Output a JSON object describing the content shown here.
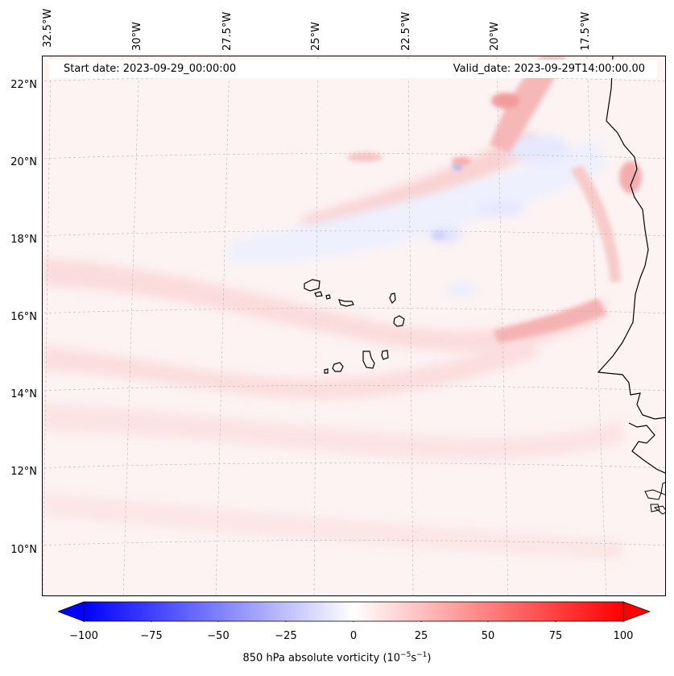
{
  "header": {
    "start_date": "Start date: 2023-09-29_00:00:00",
    "valid_date": "Valid_date: 2023-09-29T14:00:00.00"
  },
  "map": {
    "lon_labels": [
      "32.5°W",
      "30°W",
      "27.5°W",
      "25°W",
      "22.5°W",
      "20°W",
      "17.5°W"
    ],
    "lat_labels": [
      "22°N",
      "20°N",
      "18°N",
      "16°N",
      "14°N",
      "12°N",
      "10°N"
    ],
    "features": [
      "Cabo Verde islands",
      "West African coastline"
    ]
  },
  "colorbar": {
    "ticks": [
      "−100",
      "−75",
      "−50",
      "−25",
      "0",
      "25",
      "50",
      "75",
      "100"
    ],
    "label_prefix": "850 hPa absolute vorticity (10",
    "label_exp1": "−5",
    "label_mid": "s",
    "label_exp2": "−1",
    "label_suffix": ")",
    "colormap": "bwr",
    "range": [
      -100,
      100
    ],
    "low_color": "#0000ff",
    "mid_color": "#ffffff",
    "high_color": "#ff0000"
  }
}
